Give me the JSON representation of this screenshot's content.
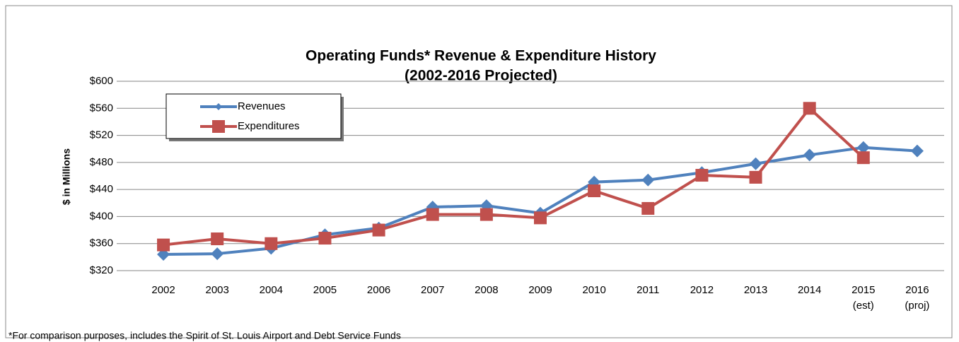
{
  "chart_data": {
    "type": "line",
    "title": "Operating Funds* Revenue & Expenditure History",
    "subtitle": "(2002-2016 Projected)",
    "y_label": "$ in Millions",
    "footnote": "*For comparison purposes, includes the Spirit of St. Louis Airport and Debt Service Funds",
    "categories": [
      "2002",
      "2003",
      "2004",
      "2005",
      "2006",
      "2007",
      "2008",
      "2009",
      "2010",
      "2011",
      "2012",
      "2013",
      "2014",
      "2015 (est)",
      "2016 (proj)"
    ],
    "series": [
      {
        "name": "Revenues",
        "color": "#4f81bd",
        "marker": "diamond",
        "values": [
          344,
          345,
          353,
          373,
          383,
          414,
          416,
          405,
          451,
          454,
          465,
          478,
          491,
          502,
          497
        ]
      },
      {
        "name": "Expenditures",
        "color": "#c0504d",
        "marker": "square",
        "values": [
          358,
          367,
          360,
          368,
          380,
          403,
          403,
          398,
          438,
          412,
          461,
          458,
          560,
          487,
          null
        ]
      }
    ],
    "ylim": [
      320,
      600
    ],
    "yticks": [
      {
        "value": 320,
        "label": "$320"
      },
      {
        "value": 360,
        "label": "$360"
      },
      {
        "value": 400,
        "label": "$400"
      },
      {
        "value": 440,
        "label": "$440"
      },
      {
        "value": 480,
        "label": "$480"
      },
      {
        "value": 520,
        "label": "$520"
      },
      {
        "value": 560,
        "label": "$560"
      },
      {
        "value": 600,
        "label": "$600"
      }
    ],
    "grid": true,
    "legend": "upper left"
  }
}
